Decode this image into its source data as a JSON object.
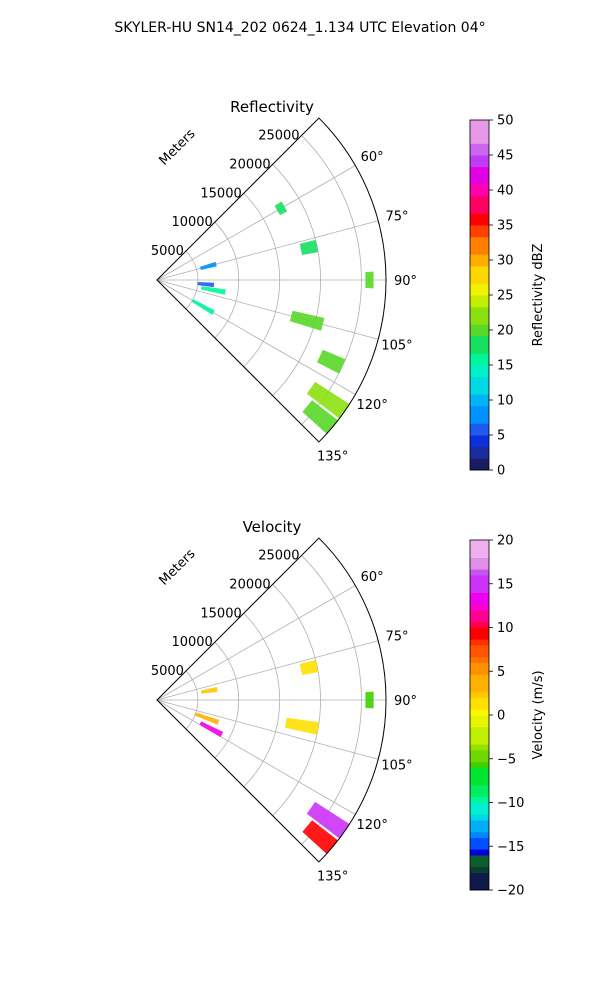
{
  "figure": {
    "suptitle": "SKYLER-HU  SN14_202  0624_1.134 UTC Elevation 04°"
  },
  "chart_data": [
    {
      "type": "heatmap",
      "subtype": "polar-sector (radar PPI)",
      "title": "Reflectivity",
      "range_axis_label": "Meters",
      "range_ticks": [
        "5000",
        "10000",
        "15000",
        "20000",
        "25000"
      ],
      "range_values": [
        5000,
        10000,
        15000,
        20000,
        25000
      ],
      "range_max": 28000,
      "angle_ticks": [
        "60°",
        "75°",
        "90°",
        "105°",
        "120°",
        "135°"
      ],
      "angle_values": [
        60,
        75,
        90,
        105,
        120,
        135
      ],
      "angle_range": [
        45,
        135
      ],
      "grid": true,
      "colorbar": {
        "label": "Reflectivity dBZ",
        "ticks": [
          "0",
          "5",
          "10",
          "15",
          "20",
          "25",
          "30",
          "35",
          "40",
          "45",
          "50"
        ],
        "range": [
          0,
          50
        ],
        "colormap": "NWS reflectivity"
      },
      "echoes": [
        {
          "azimuth": 125,
          "range_from": 23000,
          "range_to": 28000,
          "value": 22
        },
        {
          "azimuth": 130,
          "range_from": 24000,
          "range_to": 28000,
          "value": 20
        },
        {
          "azimuth": 100,
          "range_from": 5500,
          "range_to": 8500,
          "value": 15
        },
        {
          "azimuth": 120,
          "range_from": 5000,
          "range_to": 8000,
          "value": 16
        },
        {
          "azimuth": 75,
          "range_from": 5500,
          "range_to": 7500,
          "value": 8
        },
        {
          "azimuth": 95,
          "range_from": 5000,
          "range_to": 7000,
          "value": 6
        },
        {
          "azimuth": 105,
          "range_from": 17000,
          "range_to": 21000,
          "value": 19
        },
        {
          "azimuth": 90,
          "range_from": 25500,
          "range_to": 26500,
          "value": 20
        },
        {
          "azimuth": 78,
          "range_from": 18000,
          "range_to": 20000,
          "value": 18
        },
        {
          "azimuth": 115,
          "range_from": 22000,
          "range_to": 25000,
          "value": 20
        },
        {
          "azimuth": 60,
          "range_from": 17000,
          "range_to": 18000,
          "value": 17
        }
      ]
    },
    {
      "type": "heatmap",
      "subtype": "polar-sector (radar PPI)",
      "title": "Velocity",
      "range_axis_label": "Meters",
      "range_ticks": [
        "5000",
        "10000",
        "15000",
        "20000",
        "25000"
      ],
      "range_values": [
        5000,
        10000,
        15000,
        20000,
        25000
      ],
      "range_max": 28000,
      "angle_ticks": [
        "60°",
        "75°",
        "90°",
        "105°",
        "120°",
        "135°"
      ],
      "angle_values": [
        60,
        75,
        90,
        105,
        120,
        135
      ],
      "angle_range": [
        45,
        135
      ],
      "grid": true,
      "colorbar": {
        "label": "Velocity (m/s)",
        "ticks": [
          "−20",
          "−15",
          "−10",
          "−5",
          "0",
          "5",
          "10",
          "15",
          "20"
        ],
        "range": [
          -20,
          20
        ],
        "colormap": "NWS velocity"
      },
      "echoes": [
        {
          "azimuth": 125,
          "range_from": 23000,
          "range_to": 28000,
          "value": 14
        },
        {
          "azimuth": 130,
          "range_from": 24000,
          "range_to": 28000,
          "value": 9
        },
        {
          "azimuth": 118,
          "range_from": 6000,
          "range_to": 9000,
          "value": 13
        },
        {
          "azimuth": 110,
          "range_from": 5000,
          "range_to": 8000,
          "value": 3
        },
        {
          "azimuth": 80,
          "range_from": 5500,
          "range_to": 7500,
          "value": 2
        },
        {
          "azimuth": 100,
          "range_from": 16000,
          "range_to": 20000,
          "value": 1
        },
        {
          "azimuth": 90,
          "range_from": 25500,
          "range_to": 26500,
          "value": -6
        },
        {
          "azimuth": 78,
          "range_from": 18000,
          "range_to": 20000,
          "value": 1
        }
      ]
    }
  ]
}
